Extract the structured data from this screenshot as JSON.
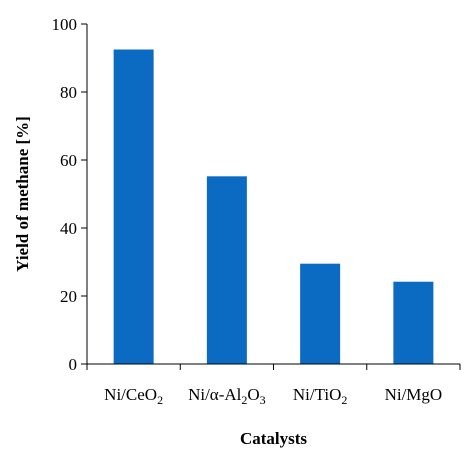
{
  "chart_data": {
    "type": "bar",
    "categories": [
      "Ni/CeO2",
      "Ni/α-Al2O3",
      "Ni/TiO2",
      "Ni/MgO"
    ],
    "category_labels": [
      [
        {
          "t": "Ni/CeO"
        },
        {
          "t": "2",
          "sub": true
        }
      ],
      [
        {
          "t": "Ni/α-Al"
        },
        {
          "t": "2",
          "sub": true
        },
        {
          "t": "O"
        },
        {
          "t": "3",
          "sub": true
        }
      ],
      [
        {
          "t": "Ni/TiO"
        },
        {
          "t": "2",
          "sub": true
        }
      ],
      [
        {
          "t": "Ni/MgO"
        }
      ]
    ],
    "values": [
      92.5,
      55.2,
      29.5,
      24.2
    ],
    "xlabel": "Catalysts",
    "ylabel": "Yield of methane [%]",
    "ylim": [
      0,
      100
    ],
    "yticks": [
      0,
      20,
      40,
      60,
      80,
      100
    ],
    "bar_color": "#0b6bc2",
    "grid": false,
    "legend": "none"
  }
}
